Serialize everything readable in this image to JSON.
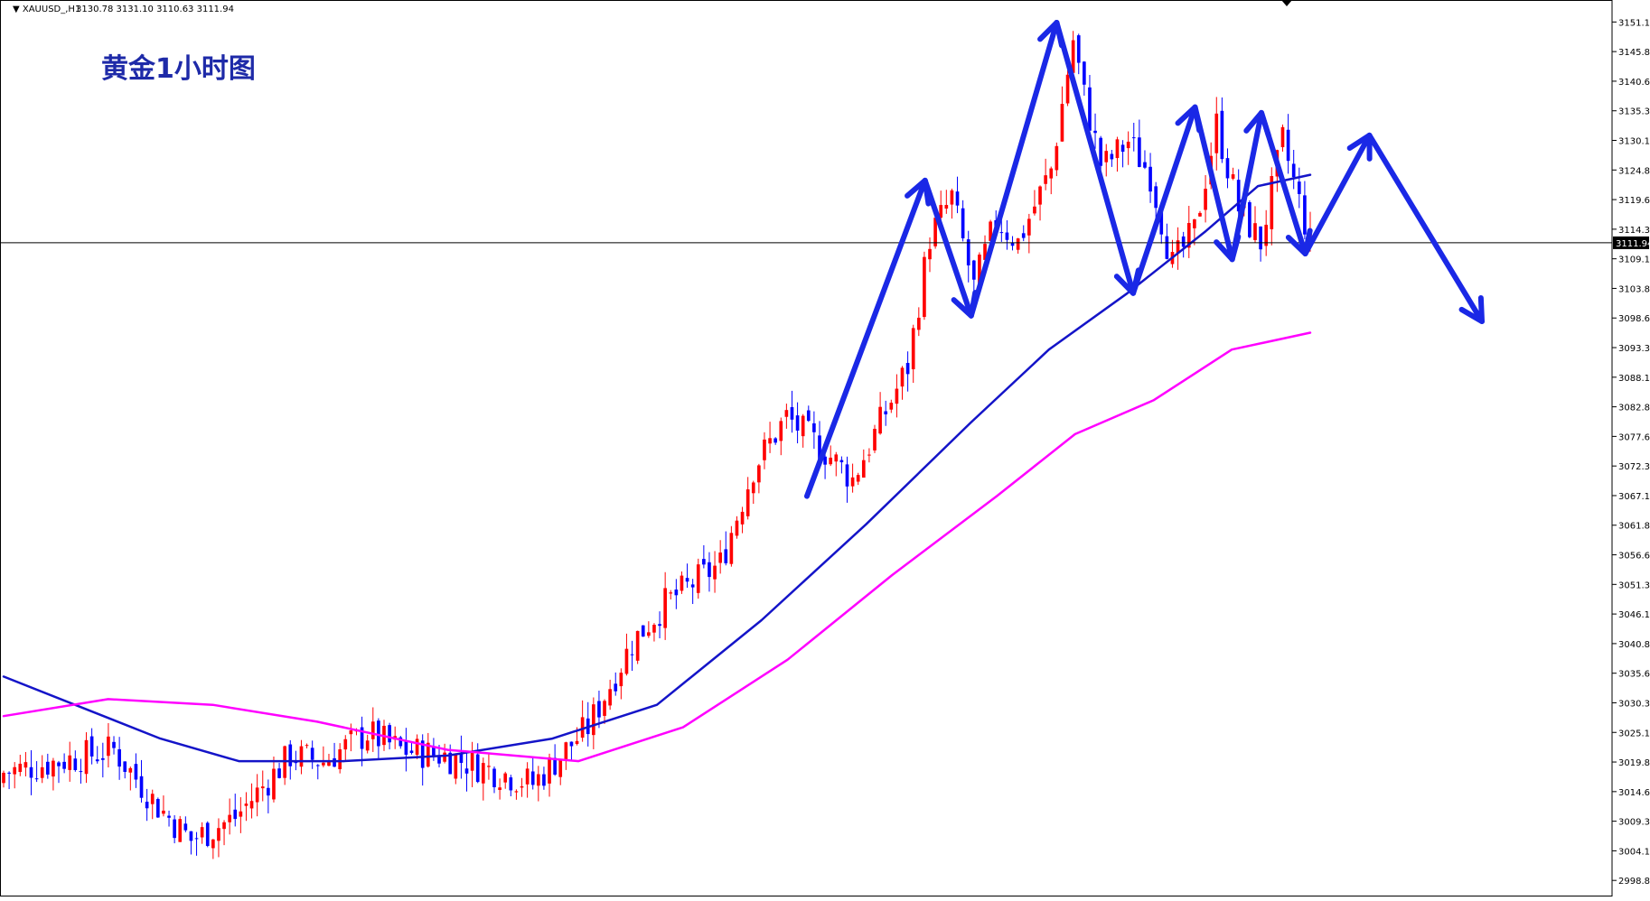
{
  "chart_data": {
    "type": "candlestick",
    "symbol_header": "XAUUSD_,H1",
    "ohlc_header": [
      "3130.78",
      "3131.10",
      "3110.63",
      "3111.94"
    ],
    "title": "黄金1小时图",
    "current_price": 3111.94,
    "current_price_label": "3111.94",
    "ylim": [
      2996,
      3155
    ],
    "y_ticks": [
      "3151.10",
      "3145.85",
      "3140.60",
      "3135.35",
      "3130.10",
      "3124.85",
      "3119.60",
      "3114.35",
      "3109.10",
      "3103.85",
      "3098.60",
      "3093.35",
      "3088.10",
      "3082.85",
      "3077.60",
      "3072.35",
      "3067.10",
      "3061.85",
      "3056.60",
      "3051.35",
      "3046.10",
      "3040.85",
      "3035.60",
      "3030.35",
      "3025.10",
      "3019.85",
      "3014.60",
      "3009.35",
      "3004.10",
      "2998.85"
    ],
    "colors": {
      "bull": "#ff0000",
      "bear": "#0000ff",
      "ma_fast": "#1414c8",
      "ma_slow": "#ff00ff",
      "annotation_arrows": "#1a28e6",
      "price_line": "#000000",
      "title": "#1e2aa8"
    },
    "candles_seed": {
      "count": 200,
      "anchors": [
        [
          0,
          3018
        ],
        [
          20,
          3022
        ],
        [
          28,
          3012
        ],
        [
          34,
          3006
        ],
        [
          42,
          3010
        ],
        [
          52,
          3021
        ],
        [
          58,
          3020
        ],
        [
          66,
          3025
        ],
        [
          72,
          3022
        ],
        [
          80,
          3021
        ],
        [
          90,
          3018
        ],
        [
          96,
          3016
        ],
        [
          106,
          3026
        ],
        [
          114,
          3041
        ],
        [
          120,
          3048
        ],
        [
          130,
          3055
        ],
        [
          136,
          3072
        ],
        [
          142,
          3081
        ],
        [
          150,
          3074
        ],
        [
          154,
          3070
        ],
        [
          160,
          3082
        ],
        [
          164,
          3090
        ],
        [
          168,
          3113
        ],
        [
          172,
          3120
        ],
        [
          176,
          3104
        ],
        [
          180,
          3116
        ],
        [
          184,
          3112
        ],
        [
          190,
          3125
        ],
        [
          194,
          3148
        ],
        [
          196,
          3138
        ],
        [
          199,
          3126
        ]
      ],
      "end_candles_note": "right-most portion continues in second segment"
    },
    "candles_seed_2": {
      "count": 38,
      "anchors": [
        [
          0,
          3126
        ],
        [
          4,
          3130
        ],
        [
          8,
          3124
        ],
        [
          12,
          3108
        ],
        [
          16,
          3114
        ],
        [
          20,
          3133
        ],
        [
          24,
          3118
        ],
        [
          28,
          3112
        ],
        [
          32,
          3130
        ],
        [
          37,
          3112
        ]
      ]
    },
    "ma_fast_points": [
      [
        0,
        3035
      ],
      [
        60,
        3024
      ],
      [
        90,
        3020
      ],
      [
        130,
        3020
      ],
      [
        170,
        3021
      ],
      [
        210,
        3024
      ],
      [
        250,
        3030
      ],
      [
        290,
        3045
      ],
      [
        330,
        3062
      ],
      [
        370,
        3080
      ],
      [
        400,
        3093
      ],
      [
        430,
        3103
      ],
      [
        460,
        3114
      ],
      [
        480,
        3122
      ],
      [
        500,
        3124
      ]
    ],
    "ma_slow_points": [
      [
        0,
        3028
      ],
      [
        40,
        3031
      ],
      [
        80,
        3030
      ],
      [
        120,
        3027
      ],
      [
        170,
        3022
      ],
      [
        220,
        3020
      ],
      [
        260,
        3026
      ],
      [
        300,
        3038
      ],
      [
        340,
        3053
      ],
      [
        380,
        3067
      ],
      [
        410,
        3078
      ],
      [
        440,
        3084
      ],
      [
        470,
        3093
      ],
      [
        500,
        3096
      ]
    ],
    "annotation_path_prices": [
      [
        0.0,
        3067
      ],
      [
        0.105,
        3123
      ],
      [
        0.146,
        3099
      ],
      [
        0.222,
        3151
      ],
      [
        0.29,
        3103
      ],
      [
        0.345,
        3136
      ],
      [
        0.378,
        3109
      ],
      [
        0.404,
        3135
      ],
      [
        0.443,
        3110
      ],
      [
        0.5,
        3131
      ],
      [
        0.6,
        3098
      ]
    ]
  }
}
